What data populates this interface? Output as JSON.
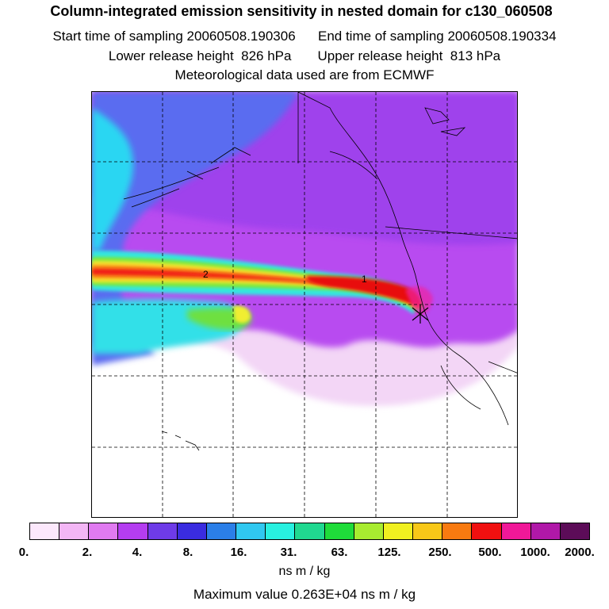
{
  "header": {
    "title": "Column-integrated emission sensitivity in nested domain for c130_060508",
    "line1": "Start time of sampling 20060508.190306      End time of sampling 20060508.190334",
    "line2": "Lower release height  826 hPa       Upper release height  813 hPa",
    "line3": "Meteorological data used are from ECMWF"
  },
  "map": {
    "contour_labels": [
      "2",
      "1"
    ],
    "release_marker_icon": "star-cross-icon"
  },
  "colorbar": {
    "colors": [
      "#fce8fc",
      "#f3b6f5",
      "#e07af0",
      "#b43df0",
      "#6e3be8",
      "#3a2ce0",
      "#2b7fe8",
      "#30c8f0",
      "#28f0e0",
      "#20d890",
      "#1fdc3a",
      "#a8ec30",
      "#f0f020",
      "#f8c818",
      "#f87a10",
      "#f01010",
      "#f01898",
      "#b018a8",
      "#5c0c58"
    ],
    "tick_labels": [
      "0.",
      "2.",
      "4.",
      "8.",
      "16.",
      "31.",
      "63.",
      "125.",
      "250.",
      "500.",
      "1000.",
      "2000."
    ],
    "units": "ns m / kg",
    "max_value_text": "Maximum value  0.263E+04 ns m / kg"
  }
}
